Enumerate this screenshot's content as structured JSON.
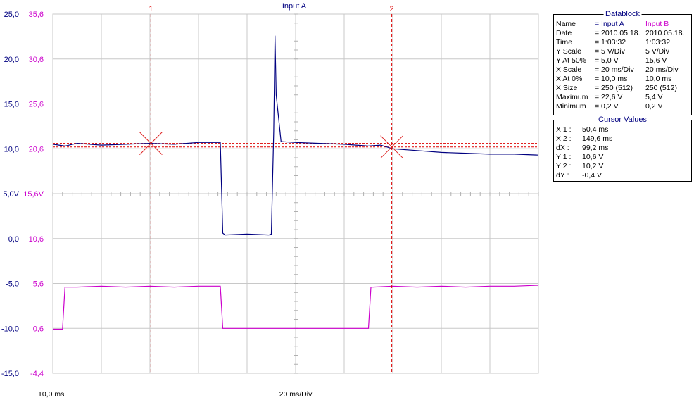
{
  "chart_data": {
    "type": "line",
    "title": "Input A",
    "xlabel": "20 ms/Div",
    "x_start_label": "10,0 ms",
    "x_range_ms": [
      10,
      210
    ],
    "yticks_left": [
      "25,0",
      "20,0",
      "15,0",
      "10,0",
      "5,0V",
      "0,0",
      "-5,0",
      "-10,0",
      "-15,0"
    ],
    "yticks_right": [
      "35,6",
      "30,6",
      "25,6",
      "20,6",
      "15,6V",
      "10,6",
      "5,6",
      "0,6",
      "-4,4"
    ],
    "ylim_a": [
      -15,
      25
    ],
    "ylim_b": [
      -4.4,
      35.6
    ],
    "grid": true,
    "series": [
      {
        "name": "Input A",
        "color": "#000080",
        "x": [
          10,
          15,
          20,
          30,
          40,
          50,
          60,
          70,
          79,
          80,
          81,
          90,
          99,
          100,
          101,
          101.5,
          102,
          104,
          110,
          120,
          130,
          140,
          145,
          150,
          160,
          170,
          180,
          190,
          200,
          210
        ],
        "y": [
          10.5,
          10.3,
          10.6,
          10.4,
          10.5,
          10.6,
          10.5,
          10.7,
          10.7,
          0.6,
          0.4,
          0.5,
          0.4,
          0.5,
          12,
          22.6,
          16,
          10.8,
          10.7,
          10.6,
          10.5,
          10.3,
          10.4,
          10.0,
          9.8,
          9.6,
          9.5,
          9.4,
          9.4,
          9.3
        ]
      },
      {
        "name": "Input B",
        "color": "#cc00cc",
        "x": [
          10,
          14,
          15,
          20,
          30,
          40,
          50,
          60,
          70,
          79,
          80,
          81,
          90,
          100,
          110,
          120,
          130,
          140,
          141,
          142,
          150,
          160,
          170,
          180,
          190,
          200,
          210
        ],
        "y": [
          0.5,
          0.5,
          5.2,
          5.2,
          5.3,
          5.2,
          5.3,
          5.2,
          5.3,
          5.3,
          0.6,
          0.6,
          0.6,
          0.6,
          0.6,
          0.6,
          0.6,
          0.6,
          5.2,
          5.2,
          5.3,
          5.2,
          5.3,
          5.2,
          5.3,
          5.3,
          5.4
        ]
      }
    ],
    "cursors": [
      {
        "label": "1",
        "x": 50.4
      },
      {
        "label": "2",
        "x": 149.6
      }
    ],
    "cursor_levels_a": [
      10.6,
      10.2
    ]
  },
  "datablock": {
    "title": "Datablock",
    "rows": [
      {
        "label": "Name",
        "a": "= Input A",
        "b": "Input B"
      },
      {
        "label": "Date",
        "a": "= 2010.05.18.",
        "b": "2010.05.18."
      },
      {
        "label": "Time",
        "a": "= 1:03:32",
        "b": "1:03:32"
      },
      {
        "label": "Y Scale",
        "a": "=    5    V/Div",
        "b": "  5    V/Div"
      },
      {
        "label": "Y At 50%",
        "a": "=    5,0 V",
        "b": "15,6 V"
      },
      {
        "label": "X Scale",
        "a": "=  20    ms/Div",
        "b": "20    ms/Div"
      },
      {
        "label": "X At 0%",
        "a": "=  10,0 ms",
        "b": "10,0 ms"
      },
      {
        "label": "X Size",
        "a": "= 250 (512)",
        "b": "250 (512)"
      },
      {
        "label": "Maximum",
        "a": "=   22,6 V",
        "b": "  5,4 V"
      },
      {
        "label": "Minimum",
        "a": "=    0,2 V",
        "b": "  0,2 V"
      }
    ]
  },
  "cursor_values": {
    "title": "Cursor Values",
    "rows": [
      {
        "label": "X 1 :",
        "value": "50,4 ms"
      },
      {
        "label": "X 2 :",
        "value": "149,6 ms"
      },
      {
        "label": "dX :",
        "value": "99,2 ms"
      },
      {
        "label": "Y 1 :",
        "value": "10,6 V"
      },
      {
        "label": "Y 2 :",
        "value": "10,2 V"
      },
      {
        "label": "dY :",
        "value": "-0,4 V"
      }
    ]
  },
  "colors": {
    "grid": "#c8c8c8",
    "axis_left": "#000080",
    "axis_right": "#cc00cc",
    "cursor": "#dd0000",
    "title": "#000080"
  }
}
